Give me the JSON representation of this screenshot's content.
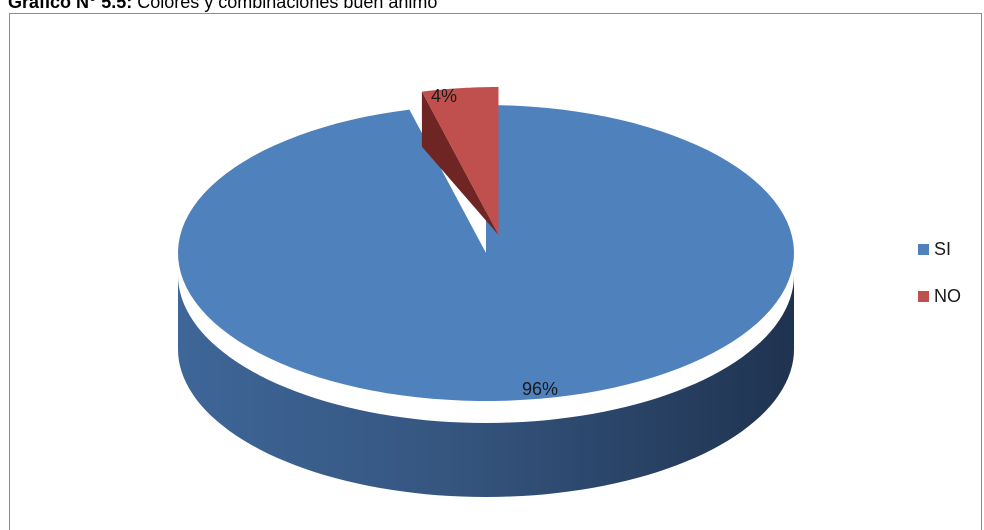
{
  "caption": {
    "prefix": "Gráfico N° 5.5:",
    "text": "Colores y combinaciones buen ánimo"
  },
  "chart_data": {
    "type": "pie",
    "style": "3d-exploded",
    "categories": [
      "SI",
      "NO"
    ],
    "values": [
      96,
      4
    ],
    "data_labels": [
      "96%",
      "4%"
    ],
    "colors": [
      "#4f81bd",
      "#c0504d"
    ],
    "legend": {
      "position": "right",
      "entries": [
        "SI",
        "NO"
      ]
    }
  }
}
